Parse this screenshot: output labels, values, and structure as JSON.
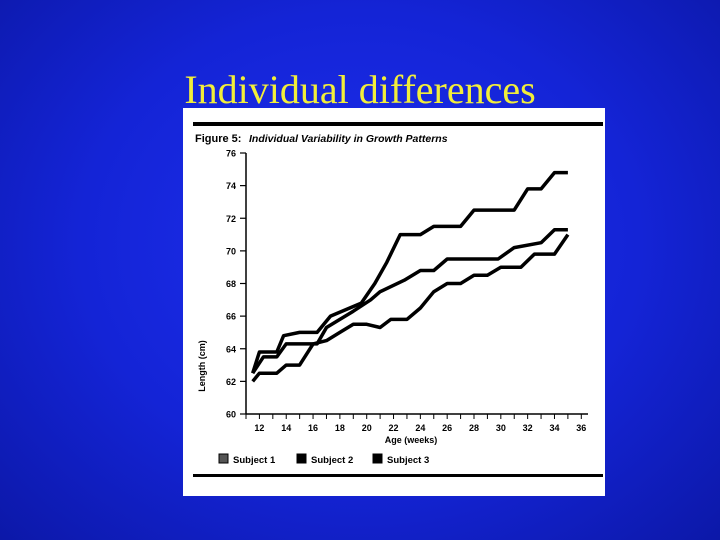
{
  "slide": {
    "title": "Individual differences"
  },
  "colors": {
    "background": "#1424d6",
    "title": "#f2ee3a",
    "figure_background": "#ffffff",
    "ink": "#000000"
  },
  "chart_data": {
    "type": "line",
    "figure_label": "Figure 5:",
    "title": "Individual Variability in Growth Patterns",
    "xlabel": "Age (weeks)",
    "ylabel": "Length (cm)",
    "xlim": [
      11,
      36.5
    ],
    "ylim": [
      60,
      76
    ],
    "x_ticks": [
      "12",
      "14",
      "16",
      "18",
      "20",
      "22",
      "24",
      "26",
      "28",
      "30",
      "32",
      "34",
      "36"
    ],
    "y_ticks": [
      "60",
      "62",
      "64",
      "66",
      "68",
      "70",
      "72",
      "74",
      "76"
    ],
    "grid": false,
    "legend_position": "bottom",
    "series": [
      {
        "name": "Subject 1",
        "points": [
          [
            11.5,
            62.5
          ],
          [
            12.0,
            63.8
          ],
          [
            13.3,
            63.8
          ],
          [
            13.8,
            64.8
          ],
          [
            15.0,
            65.0
          ],
          [
            16.3,
            65.0
          ],
          [
            17.3,
            66.0
          ],
          [
            19.6,
            66.8
          ],
          [
            20.6,
            68.0
          ],
          [
            21.5,
            69.3
          ],
          [
            22.5,
            71.0
          ],
          [
            24.0,
            71.0
          ],
          [
            25.0,
            71.5
          ],
          [
            27.0,
            71.5
          ],
          [
            28.0,
            72.5
          ],
          [
            31.0,
            72.5
          ],
          [
            32.0,
            73.8
          ],
          [
            33.0,
            73.8
          ],
          [
            34.0,
            74.8
          ],
          [
            35.0,
            74.8
          ]
        ]
      },
      {
        "name": "Subject 2",
        "points": [
          [
            11.5,
            62.5
          ],
          [
            12.3,
            63.5
          ],
          [
            13.3,
            63.5
          ],
          [
            14.0,
            64.3
          ],
          [
            16.3,
            64.3
          ],
          [
            17.0,
            65.3
          ],
          [
            17.8,
            65.7
          ],
          [
            19.0,
            66.3
          ],
          [
            20.3,
            67.0
          ],
          [
            21.0,
            67.5
          ],
          [
            22.8,
            68.2
          ],
          [
            24.0,
            68.8
          ],
          [
            25.0,
            68.8
          ],
          [
            26.0,
            69.5
          ],
          [
            29.8,
            69.5
          ],
          [
            31.0,
            70.2
          ],
          [
            33.0,
            70.5
          ],
          [
            34.0,
            71.3
          ],
          [
            35.0,
            71.3
          ]
        ]
      },
      {
        "name": "Subject 3",
        "points": [
          [
            11.5,
            62.0
          ],
          [
            12.0,
            62.5
          ],
          [
            13.3,
            62.5
          ],
          [
            14.0,
            63.0
          ],
          [
            15.0,
            63.0
          ],
          [
            16.0,
            64.3
          ],
          [
            17.0,
            64.5
          ],
          [
            18.0,
            65.0
          ],
          [
            19.0,
            65.5
          ],
          [
            20.0,
            65.5
          ],
          [
            21.0,
            65.3
          ],
          [
            21.8,
            65.8
          ],
          [
            23.0,
            65.8
          ],
          [
            24.0,
            66.5
          ],
          [
            25.0,
            67.5
          ],
          [
            26.0,
            68.0
          ],
          [
            27.0,
            68.0
          ],
          [
            28.0,
            68.5
          ],
          [
            29.0,
            68.5
          ],
          [
            30.0,
            69.0
          ],
          [
            31.5,
            69.0
          ],
          [
            32.5,
            69.8
          ],
          [
            34.0,
            69.8
          ],
          [
            35.0,
            71.0
          ]
        ]
      }
    ]
  }
}
